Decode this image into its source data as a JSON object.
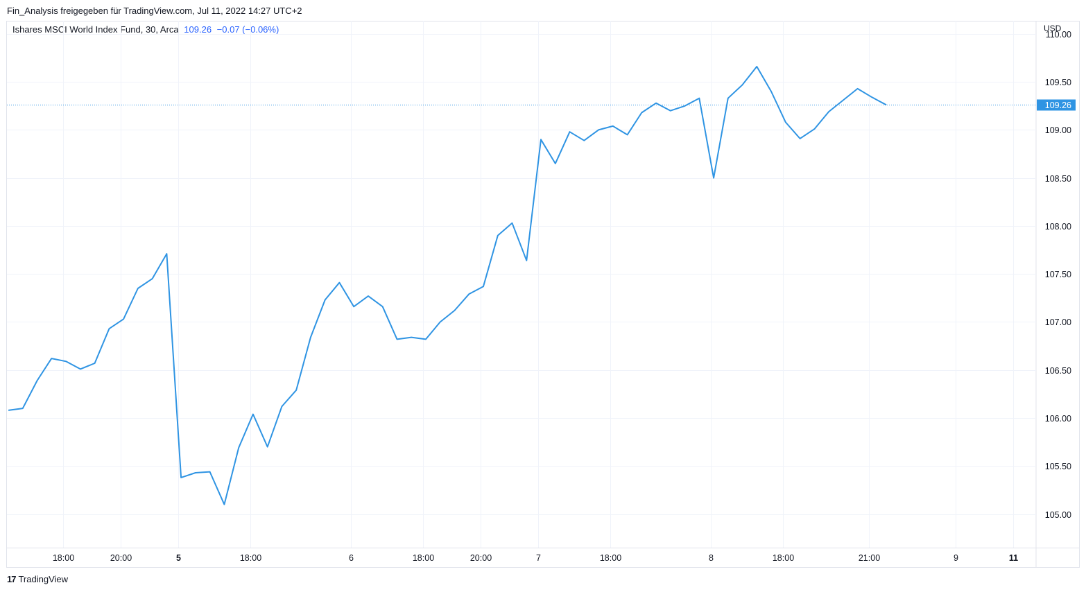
{
  "header": {
    "shared_by": "Fin_Analysis freigegeben für TradingView.com, Jul 11, 2022 14:27 UTC+2"
  },
  "legend": {
    "symbol": "Ishares MSCI World Index Fund, 30, Arca",
    "last": "109.26",
    "change": "−0.07 (−0.06%)"
  },
  "footer": {
    "logo": "17",
    "brand": "TradingView"
  },
  "colors": {
    "line": "#2f94e3",
    "grid": "#f0f3fa",
    "price_tag": "#2f94e3",
    "text": "#131722"
  },
  "chart_data": {
    "type": "line",
    "currency": "USD",
    "last_price_label": "109.26",
    "ylim": [
      104.65,
      110.05
    ],
    "y_ticks": [
      "105.00",
      "105.50",
      "106.00",
      "106.50",
      "107.00",
      "107.50",
      "108.00",
      "108.50",
      "109.00",
      "109.50",
      "110.00"
    ],
    "x_ticks": [
      "18:00",
      "20:00",
      "5",
      "18:00",
      "6",
      "18:00",
      "20:00",
      "7",
      "18:00",
      "8",
      "18:00",
      "21:00",
      "9",
      "11"
    ],
    "x_tick_bold": [
      false,
      false,
      true,
      false,
      false,
      false,
      false,
      false,
      false,
      false,
      false,
      false,
      false,
      true
    ],
    "x_tick_index": [
      3.8,
      7.8,
      11.8,
      16.8,
      23.8,
      28.8,
      32.8,
      36.8,
      41.8,
      48.8,
      53.8,
      59.8,
      65.8,
      69.8
    ],
    "x_range": [
      -0.1,
      71.4
    ],
    "series": [
      {
        "values": [
          106.08,
          106.1,
          106.39,
          106.62,
          106.59,
          106.51,
          106.57,
          106.93,
          107.03,
          107.35,
          107.45,
          107.71,
          105.38,
          105.43,
          105.44,
          105.1,
          105.69,
          106.04,
          105.7,
          106.12,
          106.29,
          106.84,
          107.23,
          107.41,
          107.16,
          107.27,
          107.16,
          106.82,
          106.84,
          106.82,
          107.0,
          107.12,
          107.29,
          107.37,
          107.9,
          108.03,
          107.64,
          108.9,
          108.65,
          108.98,
          108.89,
          109.0,
          109.04,
          108.95,
          109.18,
          109.28,
          109.2,
          109.25,
          109.33,
          108.5,
          109.33,
          109.47,
          109.66,
          109.4,
          109.08,
          108.91,
          109.01,
          109.19,
          109.31,
          109.43,
          109.34,
          109.26
        ]
      }
    ]
  }
}
